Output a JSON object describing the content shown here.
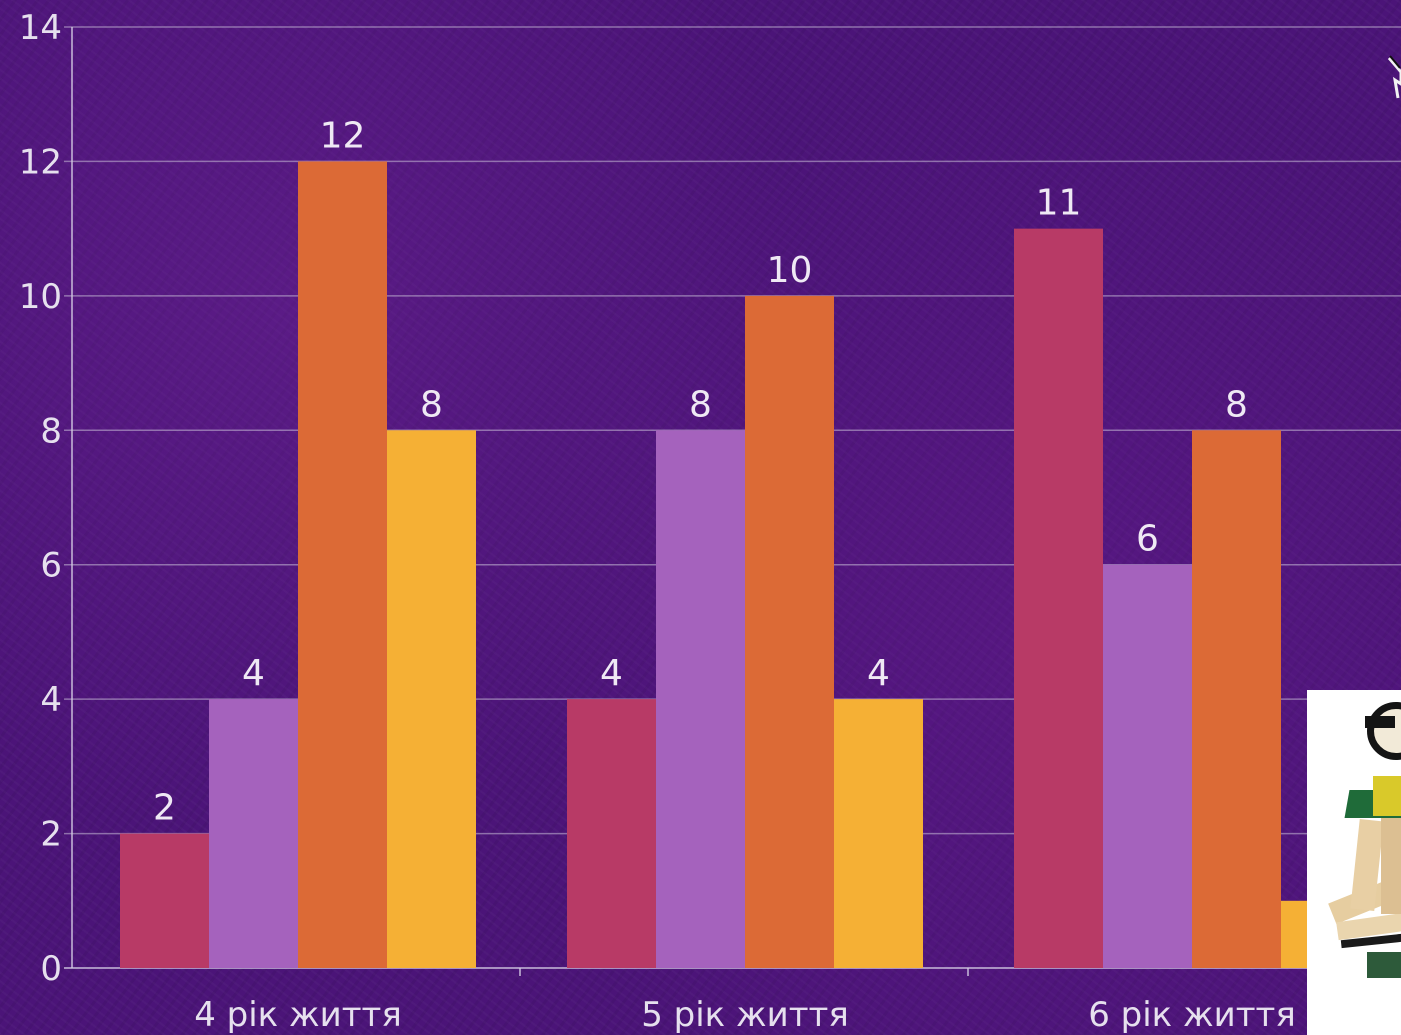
{
  "chart_data": {
    "type": "bar",
    "categories": [
      "4 рік життя",
      "5 рік життя",
      "6 рік життя"
    ],
    "series": [
      {
        "values": [
          2,
          4,
          11
        ],
        "color": "#b83a66"
      },
      {
        "values": [
          4,
          8,
          6
        ],
        "color": "#a562bd"
      },
      {
        "values": [
          12,
          10,
          8
        ],
        "color": "#dc6a36"
      },
      {
        "values": [
          8,
          4,
          1
        ],
        "color": "#f5b035"
      }
    ],
    "data_labels": [
      [
        "2",
        "4",
        "11"
      ],
      [
        "4",
        "8",
        "6"
      ],
      [
        "12",
        "10",
        "8"
      ],
      [
        "8",
        "4",
        ""
      ]
    ],
    "y_ticks": [
      "0",
      "2",
      "4",
      "6",
      "8",
      "10",
      "12",
      "14"
    ],
    "ylim": [
      0,
      14
    ],
    "grid": true,
    "legend": "none",
    "title": "",
    "xlabel": "",
    "ylabel": ""
  },
  "decoration": {
    "photo_icon": "wooden-toy-photo",
    "corner_icon": "star-fragment-icon"
  }
}
